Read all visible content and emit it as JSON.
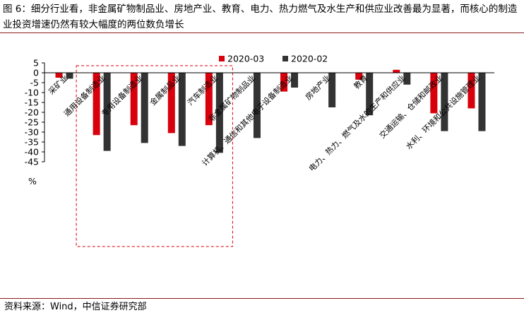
{
  "header": {
    "title": "图 6：细分行业看，非金属矿物制品业、房地产业、教育、电力、热力燃气及水生产和供应业改善最为显著，而核心的制造业投资增速仍然有较大幅度的两位数负增长"
  },
  "footer": {
    "source": "资料来源：Wind，中信证券研究部"
  },
  "chart_data": {
    "type": "bar",
    "categories": [
      "采矿业",
      "通用设备制造业",
      "专用设备制造业",
      "金属制品业",
      "汽车制造业",
      "非金属矿物制品业",
      "计算机、通信和其他电子设备制造业",
      "房地产业",
      "教育",
      "电力、热力、燃气及水的生产和供应业",
      "交通运输、仓储和邮政业",
      "水利、环境和公共设施管理业"
    ],
    "series": [
      {
        "name": "2020-03",
        "color": "#d9000d",
        "values": [
          -2.5,
          -31.5,
          -26.5,
          -30.5,
          -26.5,
          null,
          -9.5,
          null,
          -3.5,
          1.5,
          -20.5,
          -18
        ]
      },
      {
        "name": "2020-02",
        "color": "#333333",
        "values": [
          -3,
          -39.5,
          -35.5,
          -37,
          -40.5,
          -33,
          -7.5,
          -17.5,
          -21.5,
          -6,
          -29.5,
          -29.5
        ]
      }
    ],
    "ylim": [
      -45,
      5
    ],
    "yticks": [
      5,
      0,
      -5,
      -10,
      -15,
      -20,
      -25,
      -30,
      -35,
      -40,
      -45
    ],
    "ylabel": "%",
    "legend": "top",
    "highlight": {
      "from_category": 1,
      "to_category": 4,
      "style": "dashed-red-box"
    }
  }
}
